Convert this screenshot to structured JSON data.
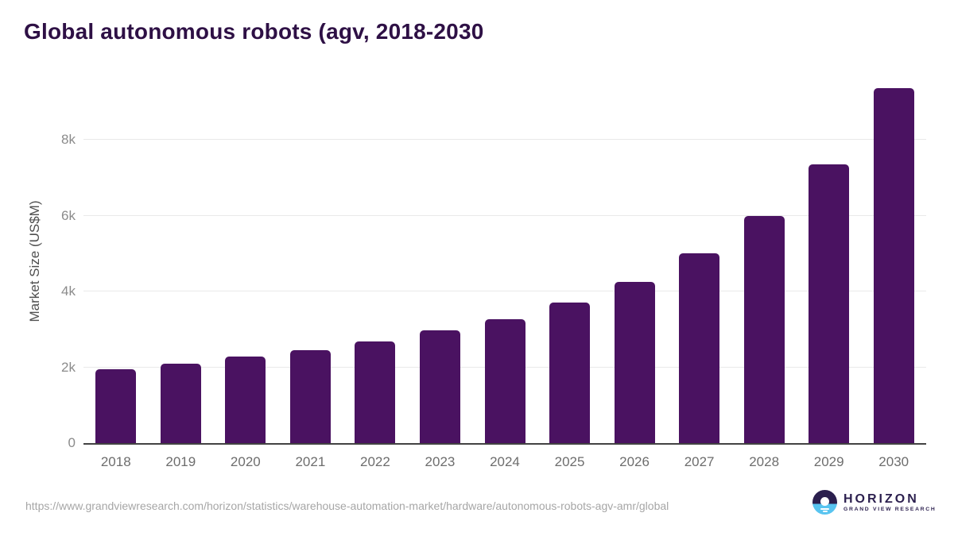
{
  "header": {
    "title": "Global autonomous robots (agv, 2018-2030"
  },
  "chart_data": {
    "type": "bar",
    "title": "Global autonomous robots (agv, 2018-2030",
    "categories": [
      "2018",
      "2019",
      "2020",
      "2021",
      "2022",
      "2023",
      "2024",
      "2025",
      "2026",
      "2027",
      "2028",
      "2029",
      "2030"
    ],
    "values": [
      1950,
      2090,
      2280,
      2450,
      2680,
      2970,
      3280,
      3710,
      4250,
      5000,
      6000,
      7350,
      9360
    ],
    "xlabel": "",
    "ylabel": "Market Size (US$M)",
    "ylim": [
      0,
      9600
    ],
    "yticks": [
      {
        "value": 0,
        "label": "0"
      },
      {
        "value": 2000,
        "label": "2k"
      },
      {
        "value": 4000,
        "label": "4k"
      },
      {
        "value": 6000,
        "label": "6k"
      },
      {
        "value": 8000,
        "label": "8k"
      }
    ],
    "grid": true,
    "legend": "none",
    "bar_color": "#4a1261"
  },
  "footer": {
    "source_url": "https://www.grandviewresearch.com/horizon/statistics/warehouse-automation-market/hardware/autonomous-robots-agv-amr/global",
    "logo": {
      "brand": "HORIZON",
      "sub_brand": "GRAND VIEW RESEARCH"
    }
  },
  "colors": {
    "bar": "#4a1261",
    "title_text": "#2e1045",
    "gridline": "#e9e9e9",
    "axis_line": "#424242",
    "tick_text": "#8b8b8b",
    "year_text": "#6d6d6d",
    "logo_navy": "#2b1f4e",
    "logo_blue": "#58c4f0"
  }
}
